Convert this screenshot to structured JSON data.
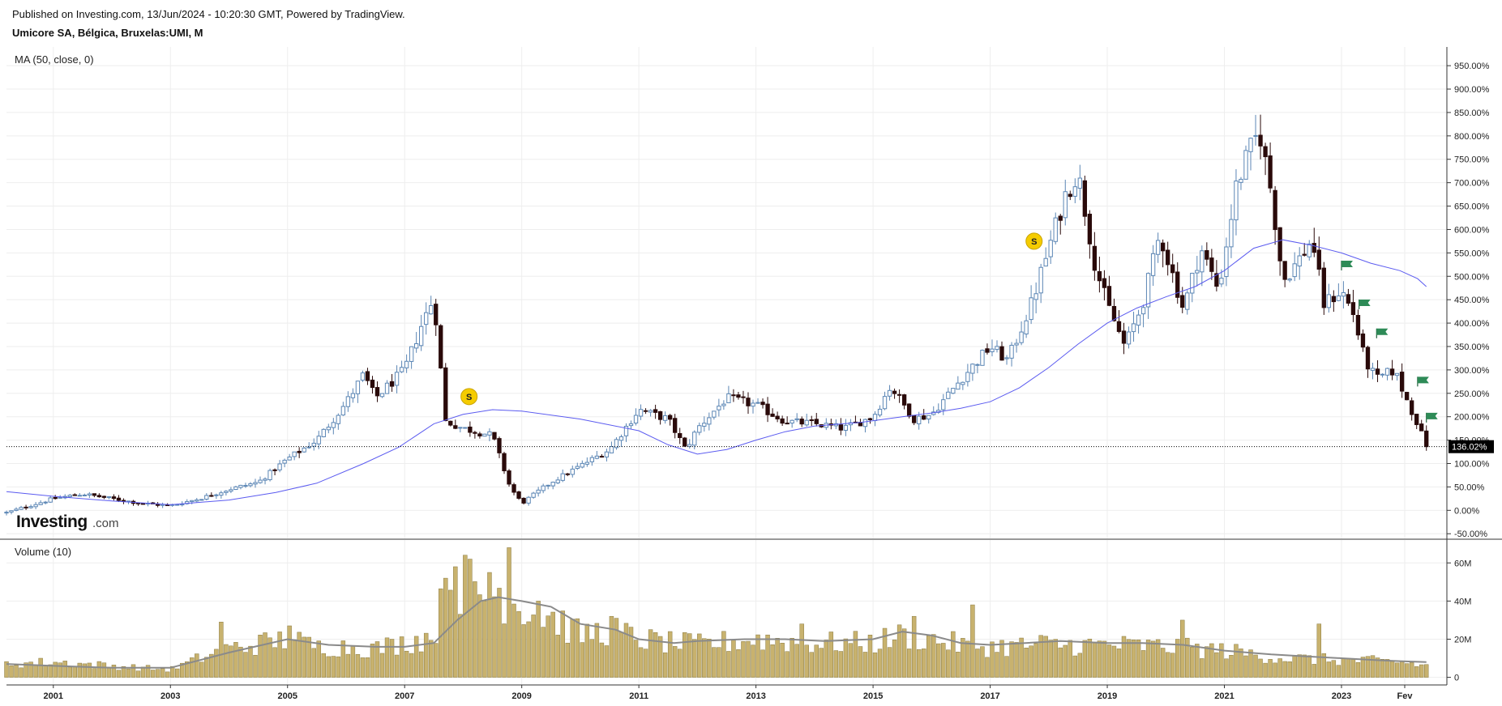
{
  "header": {
    "published": "Published on Investing.com, 13/Jun/2024 - 10:20:30 GMT, Powered by TradingView.",
    "symbol": "Umicore SA, Bélgica, Bruxelas:UMI, M"
  },
  "logo": {
    "main": "Investing",
    "suffix": ".com"
  },
  "chart_data": [
    {
      "type": "candlestick",
      "pane_label": "MA (50, close, 0)",
      "y_unit": "%",
      "ylim": [
        -60,
        990
      ],
      "y_ticks": [
        "950.00%",
        "900.00%",
        "850.00%",
        "800.00%",
        "750.00%",
        "700.00%",
        "650.00%",
        "600.00%",
        "550.00%",
        "500.00%",
        "450.00%",
        "400.00%",
        "350.00%",
        "300.00%",
        "250.00%",
        "200.00%",
        "150.00%",
        "100.00%",
        "50.00%",
        "0.00%",
        "-50.00%"
      ],
      "y_tick_values": [
        950,
        900,
        850,
        800,
        750,
        700,
        650,
        600,
        550,
        500,
        450,
        400,
        350,
        300,
        250,
        200,
        150,
        100,
        50,
        0,
        -50
      ],
      "x_labels": [
        "2001",
        "2003",
        "2005",
        "2007",
        "2009",
        "2011",
        "2013",
        "2015",
        "2017",
        "2019",
        "2021",
        "2023",
        "Fev"
      ],
      "x_label_years": [
        2001,
        2003,
        2005,
        2007,
        2009,
        2011,
        2013,
        2015,
        2017,
        2019,
        2021,
        2023,
        2024.08
      ],
      "xlim": [
        2000.2,
        2024.8
      ],
      "last_price": {
        "value": 136.02,
        "label": "136.02%"
      },
      "grid": true,
      "close_anchors": [
        [
          2000.2,
          -5
        ],
        [
          2001.0,
          25
        ],
        [
          2001.5,
          35
        ],
        [
          2002.0,
          25
        ],
        [
          2002.5,
          15
        ],
        [
          2003.0,
          10
        ],
        [
          2003.5,
          25
        ],
        [
          2004.0,
          45
        ],
        [
          2004.5,
          60
        ],
        [
          2005.0,
          110
        ],
        [
          2005.5,
          150
        ],
        [
          2006.0,
          230
        ],
        [
          2006.3,
          290
        ],
        [
          2006.5,
          240
        ],
        [
          2007.0,
          300
        ],
        [
          2007.3,
          400
        ],
        [
          2007.5,
          455
        ],
        [
          2007.7,
          190
        ],
        [
          2008.0,
          175
        ],
        [
          2008.5,
          160
        ],
        [
          2008.8,
          50
        ],
        [
          2009.0,
          15
        ],
        [
          2009.5,
          60
        ],
        [
          2010.0,
          95
        ],
        [
          2010.5,
          130
        ],
        [
          2011.0,
          215
        ],
        [
          2011.5,
          195
        ],
        [
          2011.8,
          130
        ],
        [
          2012.0,
          175
        ],
        [
          2012.5,
          240
        ],
        [
          2013.0,
          225
        ],
        [
          2013.5,
          190
        ],
        [
          2014.0,
          185
        ],
        [
          2014.5,
          175
        ],
        [
          2015.0,
          200
        ],
        [
          2015.3,
          265
        ],
        [
          2015.7,
          195
        ],
        [
          2016.0,
          205
        ],
        [
          2016.5,
          280
        ],
        [
          2017.0,
          350
        ],
        [
          2017.3,
          320
        ],
        [
          2017.7,
          440
        ],
        [
          2018.0,
          560
        ],
        [
          2018.3,
          680
        ],
        [
          2018.5,
          720
        ],
        [
          2018.8,
          520
        ],
        [
          2019.0,
          440
        ],
        [
          2019.3,
          350
        ],
        [
          2019.6,
          440
        ],
        [
          2019.9,
          590
        ],
        [
          2020.3,
          430
        ],
        [
          2020.6,
          560
        ],
        [
          2020.9,
          470
        ],
        [
          2021.2,
          690
        ],
        [
          2021.4,
          760
        ],
        [
          2021.6,
          810
        ],
        [
          2021.8,
          680
        ],
        [
          2022.0,
          490
        ],
        [
          2022.3,
          540
        ],
        [
          2022.5,
          580
        ],
        [
          2022.7,
          440
        ],
        [
          2023.0,
          470
        ],
        [
          2023.2,
          420
        ],
        [
          2023.4,
          320
        ],
        [
          2023.6,
          280
        ],
        [
          2023.9,
          300
        ],
        [
          2024.1,
          240
        ],
        [
          2024.3,
          185
        ],
        [
          2024.45,
          136
        ]
      ],
      "ma_points": [
        [
          2000.2,
          40
        ],
        [
          2001.0,
          30
        ],
        [
          2002.0,
          20
        ],
        [
          2003.0,
          12
        ],
        [
          2004.0,
          22
        ],
        [
          2004.8,
          38
        ],
        [
          2005.5,
          58
        ],
        [
          2006.3,
          100
        ],
        [
          2006.9,
          135
        ],
        [
          2007.5,
          185
        ],
        [
          2008.0,
          205
        ],
        [
          2008.5,
          215
        ],
        [
          2009.0,
          212
        ],
        [
          2010.0,
          195
        ],
        [
          2011.0,
          170
        ],
        [
          2011.5,
          140
        ],
        [
          2012.0,
          120
        ],
        [
          2012.5,
          130
        ],
        [
          2013.0,
          150
        ],
        [
          2013.5,
          168
        ],
        [
          2014.0,
          180
        ],
        [
          2014.8,
          188
        ],
        [
          2015.5,
          200
        ],
        [
          2016.0,
          208
        ],
        [
          2016.5,
          218
        ],
        [
          2017.0,
          232
        ],
        [
          2017.5,
          262
        ],
        [
          2018.0,
          305
        ],
        [
          2018.5,
          355
        ],
        [
          2019.0,
          400
        ],
        [
          2019.5,
          432
        ],
        [
          2020.0,
          456
        ],
        [
          2020.5,
          478
        ],
        [
          2021.0,
          512
        ],
        [
          2021.5,
          560
        ],
        [
          2022.0,
          578
        ],
        [
          2022.5,
          566
        ],
        [
          2023.0,
          550
        ],
        [
          2023.5,
          528
        ],
        [
          2024.0,
          512
        ],
        [
          2024.3,
          495
        ],
        [
          2024.45,
          478
        ]
      ],
      "dividend_markers": [
        {
          "x": 2008.1,
          "y": 243,
          "label": "S"
        },
        {
          "x": 2017.75,
          "y": 575,
          "label": "S"
        }
      ],
      "flags": [
        {
          "x": 2023.0,
          "y": 523
        },
        {
          "x": 2023.3,
          "y": 440
        },
        {
          "x": 2023.6,
          "y": 378
        },
        {
          "x": 2024.3,
          "y": 275
        },
        {
          "x": 2024.45,
          "y": 198
        }
      ]
    },
    {
      "type": "bar",
      "pane_label": "Volume (10)",
      "y_unit": "M",
      "ylim": [
        -4,
        72
      ],
      "y_ticks": [
        "60M",
        "40M",
        "20M",
        "0"
      ],
      "y_tick_values": [
        60,
        40,
        20,
        0
      ],
      "volume_anchors": [
        [
          2000.2,
          7
        ],
        [
          2001.0,
          8
        ],
        [
          2002.0,
          6
        ],
        [
          2003.0,
          4
        ],
        [
          2003.5,
          10
        ],
        [
          2004.0,
          15
        ],
        [
          2005.0,
          20
        ],
        [
          2005.5,
          16
        ],
        [
          2006.0,
          16
        ],
        [
          2006.5,
          15
        ],
        [
          2007.0,
          18
        ],
        [
          2007.5,
          22
        ],
        [
          2007.7,
          45
        ],
        [
          2008.0,
          50
        ],
        [
          2008.3,
          42
        ],
        [
          2008.6,
          45
        ],
        [
          2008.8,
          40
        ],
        [
          2009.0,
          38
        ],
        [
          2009.5,
          32
        ],
        [
          2010.0,
          22
        ],
        [
          2010.5,
          25
        ],
        [
          2011.0,
          20
        ],
        [
          2011.5,
          18
        ],
        [
          2012.0,
          17
        ],
        [
          2013.0,
          20
        ],
        [
          2014.0,
          18
        ],
        [
          2015.0,
          18
        ],
        [
          2015.5,
          22
        ],
        [
          2016.0,
          20
        ],
        [
          2016.5,
          17
        ],
        [
          2017.0,
          16
        ],
        [
          2018.0,
          17
        ],
        [
          2019.0,
          17
        ],
        [
          2020.0,
          16
        ],
        [
          2021.0,
          14
        ],
        [
          2022.0,
          10
        ],
        [
          2023.0,
          9
        ],
        [
          2024.0,
          8
        ],
        [
          2024.45,
          6
        ]
      ],
      "volume_spikes": [
        [
          2003.9,
          29
        ],
        [
          2005.0,
          27
        ],
        [
          2007.7,
          52
        ],
        [
          2007.9,
          58
        ],
        [
          2008.15,
          62
        ],
        [
          2008.45,
          55
        ],
        [
          2008.8,
          68
        ],
        [
          2009.3,
          40
        ],
        [
          2010.5,
          32
        ],
        [
          2013.8,
          28
        ],
        [
          2015.7,
          32
        ],
        [
          2016.7,
          38
        ],
        [
          2017.9,
          22
        ],
        [
          2020.3,
          30
        ],
        [
          2022.6,
          28
        ]
      ],
      "ma_points": [
        [
          2000.2,
          7
        ],
        [
          2001.0,
          6
        ],
        [
          2002.0,
          5
        ],
        [
          2003.0,
          5
        ],
        [
          2004.0,
          13
        ],
        [
          2005.0,
          20
        ],
        [
          2005.7,
          17
        ],
        [
          2006.5,
          16
        ],
        [
          2007.0,
          16
        ],
        [
          2007.5,
          18
        ],
        [
          2007.9,
          30
        ],
        [
          2008.3,
          40
        ],
        [
          2008.6,
          42
        ],
        [
          2009.0,
          40
        ],
        [
          2009.5,
          37
        ],
        [
          2010.0,
          28
        ],
        [
          2010.6,
          25
        ],
        [
          2011.0,
          20
        ],
        [
          2011.6,
          18
        ],
        [
          2012.0,
          19
        ],
        [
          2012.8,
          20
        ],
        [
          2013.5,
          20
        ],
        [
          2014.2,
          19
        ],
        [
          2015.0,
          20
        ],
        [
          2015.5,
          24
        ],
        [
          2016.0,
          22
        ],
        [
          2016.5,
          18
        ],
        [
          2017.0,
          17
        ],
        [
          2017.6,
          18
        ],
        [
          2018.2,
          19
        ],
        [
          2019.0,
          18
        ],
        [
          2019.6,
          18
        ],
        [
          2020.3,
          17
        ],
        [
          2021.0,
          14
        ],
        [
          2021.8,
          12
        ],
        [
          2022.4,
          11
        ],
        [
          2023.0,
          10
        ],
        [
          2023.6,
          9
        ],
        [
          2024.0,
          8.5
        ],
        [
          2024.45,
          8
        ]
      ]
    }
  ],
  "colors": {
    "candle_up_fill": "#ffffff",
    "candle_up_border": "#5b86b5",
    "candle_down": "#2a0a0a",
    "ma_line": "#5b5bf0",
    "volume_bar": "#c8b26e",
    "volume_border": "#8a7a40",
    "volume_ma": "#8a8a8a",
    "grid": "#eeeeee",
    "dividend_marker": "#f5cc00",
    "flag": "#2e8b57",
    "price_tag": "#000000"
  }
}
